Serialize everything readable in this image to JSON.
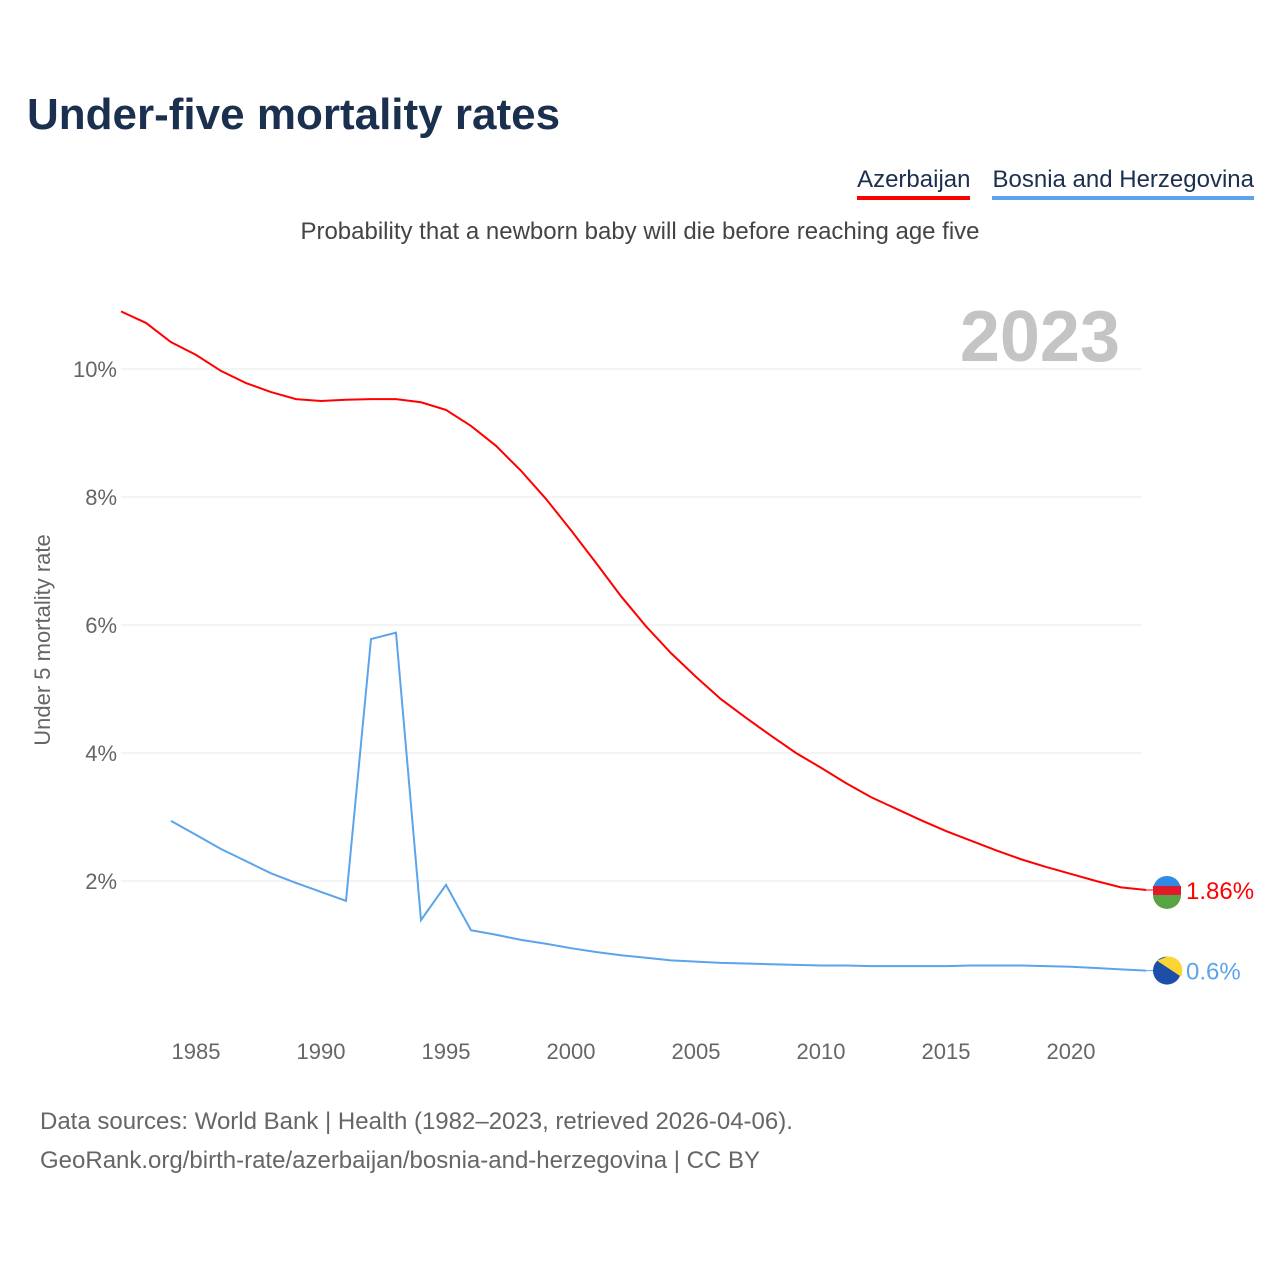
{
  "title": "Under-five mortality rates",
  "subtitle": "Probability that a newborn baby will die before reaching age five",
  "footer": {
    "line1": "Data sources: World Bank | Health (1982–2023, retrieved 2026-04-06).",
    "line2": "GeoRank.org/birth-rate/azerbaijan/bosnia-and-herzegovina | CC BY"
  },
  "chart_data": {
    "type": "line",
    "title": "Under-five mortality rates",
    "ylabel": "Under 5 mortality rate",
    "xlabel": "",
    "year_label": "2023",
    "xlim": [
      1982,
      2023
    ],
    "ylim": [
      0,
      11
    ],
    "xticks": [
      1985,
      1990,
      1995,
      2000,
      2005,
      2010,
      2015,
      2020
    ],
    "yticks": [
      2,
      4,
      6,
      8,
      10
    ],
    "ytick_labels": [
      "2%",
      "4%",
      "6%",
      "8%",
      "10%"
    ],
    "grid": true,
    "legend_position": "top-right",
    "series": [
      {
        "name": "Azerbaijan",
        "color": "#ff0000",
        "end_label": "1.86%",
        "x": [
          1982,
          1983,
          1984,
          1985,
          1986,
          1987,
          1988,
          1989,
          1990,
          1991,
          1992,
          1993,
          1994,
          1995,
          1996,
          1997,
          1998,
          1999,
          2000,
          2001,
          2002,
          2003,
          2004,
          2005,
          2006,
          2007,
          2008,
          2009,
          2010,
          2011,
          2012,
          2013,
          2014,
          2015,
          2016,
          2017,
          2018,
          2019,
          2020,
          2021,
          2022,
          2023
        ],
        "y": [
          10.9,
          10.72,
          10.42,
          10.22,
          9.97,
          9.78,
          9.64,
          9.53,
          9.5,
          9.52,
          9.53,
          9.53,
          9.48,
          9.36,
          9.11,
          8.8,
          8.41,
          7.97,
          7.48,
          6.97,
          6.45,
          5.98,
          5.56,
          5.19,
          4.84,
          4.55,
          4.27,
          4.0,
          3.77,
          3.53,
          3.31,
          3.13,
          2.95,
          2.78,
          2.63,
          2.48,
          2.34,
          2.22,
          2.11,
          2.0,
          1.9,
          1.86
        ]
      },
      {
        "name": "Bosnia and Herzegovina",
        "color": "#5ba4ec",
        "end_label": "0.6%",
        "x": [
          1984,
          1985,
          1986,
          1987,
          1988,
          1989,
          1990,
          1991,
          1992,
          1993,
          1994,
          1995,
          1996,
          1997,
          1998,
          1999,
          2000,
          2001,
          2002,
          2003,
          2004,
          2005,
          2006,
          2007,
          2008,
          2009,
          2010,
          2011,
          2012,
          2013,
          2014,
          2015,
          2016,
          2017,
          2018,
          2019,
          2020,
          2021,
          2022,
          2023
        ],
        "y": [
          2.94,
          2.72,
          2.5,
          2.31,
          2.12,
          1.97,
          1.83,
          1.69,
          5.78,
          5.88,
          1.39,
          1.94,
          1.23,
          1.16,
          1.08,
          1.02,
          0.95,
          0.89,
          0.84,
          0.8,
          0.76,
          0.74,
          0.72,
          0.71,
          0.7,
          0.69,
          0.68,
          0.68,
          0.67,
          0.67,
          0.67,
          0.67,
          0.68,
          0.68,
          0.68,
          0.67,
          0.66,
          0.64,
          0.62,
          0.6
        ]
      }
    ]
  }
}
